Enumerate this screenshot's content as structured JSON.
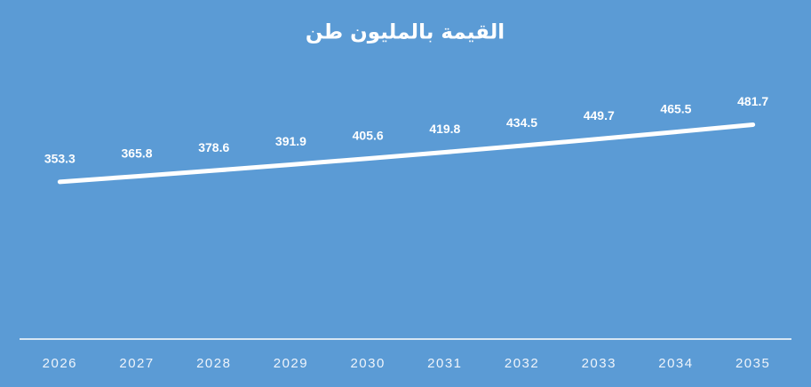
{
  "chart_data": {
    "type": "line",
    "title": "القيمة بالمليون طن",
    "categories": [
      "2026",
      "2027",
      "2028",
      "2029",
      "2030",
      "2031",
      "2032",
      "2033",
      "2034",
      "2035"
    ],
    "values": [
      353.3,
      365.8,
      378.6,
      391.9,
      405.6,
      419.8,
      434.5,
      449.7,
      465.5,
      481.7
    ],
    "color": "#ffffff",
    "ylim": [
      0,
      700
    ],
    "grid": false,
    "drop_lines": true
  }
}
